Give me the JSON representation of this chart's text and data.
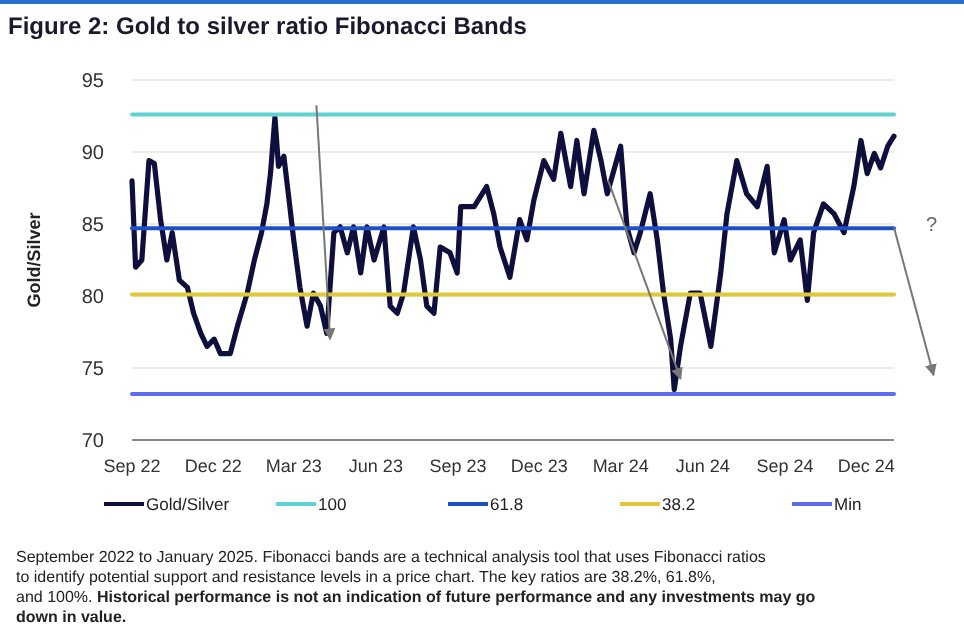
{
  "chart_data": {
    "type": "line",
    "title": "Figure 2: Gold to silver ratio Fibonacci Bands",
    "ylabel": "Gold/Silver",
    "xlim": [
      "2022-09-01",
      "2025-01-01"
    ],
    "xticks": [
      {
        "value": "2022-09-01",
        "label": "Sep 22"
      },
      {
        "value": "2022-12-01",
        "label": "Dec 22"
      },
      {
        "value": "2023-03-01",
        "label": "Mar 23"
      },
      {
        "value": "2023-06-01",
        "label": "Jun 23"
      },
      {
        "value": "2023-09-01",
        "label": "Sep 23"
      },
      {
        "value": "2023-12-01",
        "label": "Dec 23"
      },
      {
        "value": "2024-03-01",
        "label": "Mar 24"
      },
      {
        "value": "2024-06-01",
        "label": "Jun 24"
      },
      {
        "value": "2024-09-01",
        "label": "Sep 24"
      },
      {
        "value": "2024-12-01",
        "label": "Dec 24"
      }
    ],
    "ylim": [
      70,
      95
    ],
    "yticks": [
      70,
      75,
      80,
      85,
      90,
      95
    ],
    "grid": "y",
    "legend": "bottom",
    "series": [
      {
        "name": "Gold/Silver",
        "color": "#0f0f3d",
        "x": [
          "2022-09-01",
          "2022-09-05",
          "2022-09-12",
          "2022-09-20",
          "2022-09-26",
          "2022-10-03",
          "2022-10-10",
          "2022-10-16",
          "2022-10-24",
          "2022-11-02",
          "2022-11-09",
          "2022-11-17",
          "2022-11-24",
          "2022-12-02",
          "2022-12-09",
          "2022-12-20",
          "2022-12-28",
          "2023-01-08",
          "2023-01-16",
          "2023-01-24",
          "2023-01-30",
          "2023-02-03",
          "2023-02-08",
          "2023-02-12",
          "2023-02-18",
          "2023-02-23",
          "2023-03-01",
          "2023-03-08",
          "2023-03-16",
          "2023-03-23",
          "2023-03-31",
          "2023-04-07",
          "2023-04-15",
          "2023-04-22",
          "2023-04-30",
          "2023-05-07",
          "2023-05-15",
          "2023-05-22",
          "2023-05-30",
          "2023-06-10",
          "2023-06-17",
          "2023-06-25",
          "2023-07-02",
          "2023-07-13",
          "2023-07-21",
          "2023-07-28",
          "2023-08-05",
          "2023-08-12",
          "2023-08-23",
          "2023-08-31",
          "2023-09-04",
          "2023-09-19",
          "2023-10-03",
          "2023-10-11",
          "2023-10-18",
          "2023-10-29",
          "2023-11-09",
          "2023-11-17",
          "2023-11-25",
          "2023-12-06",
          "2023-12-17",
          "2023-12-25",
          "2024-01-05",
          "2024-01-12",
          "2024-01-20",
          "2024-01-31",
          "2024-02-08",
          "2024-02-15",
          "2024-03-01",
          "2024-03-08",
          "2024-03-16",
          "2024-03-23",
          "2024-04-03",
          "2024-04-11",
          "2024-04-18",
          "2024-04-26",
          "2024-04-30",
          "2024-05-07",
          "2024-05-18",
          "2024-05-29",
          "2024-06-10",
          "2024-06-21",
          "2024-06-28",
          "2024-07-09",
          "2024-07-20",
          "2024-08-01",
          "2024-08-12",
          "2024-08-20",
          "2024-08-31",
          "2024-09-07",
          "2024-09-18",
          "2024-09-26",
          "2024-10-03",
          "2024-10-14",
          "2024-10-26",
          "2024-11-06",
          "2024-11-17",
          "2024-11-25",
          "2024-12-02",
          "2024-12-10",
          "2024-12-17",
          "2024-12-25",
          "2025-01-01"
        ],
        "values": [
          88.0,
          82.0,
          82.5,
          89.4,
          89.2,
          85.3,
          82.5,
          84.4,
          81.1,
          80.6,
          78.8,
          77.4,
          76.5,
          77.0,
          76.0,
          76.0,
          77.9,
          80.2,
          82.5,
          84.4,
          86.4,
          88.5,
          92.4,
          89.0,
          89.7,
          87.1,
          83.9,
          80.6,
          77.9,
          80.2,
          79.3,
          77.4,
          84.4,
          84.8,
          83.0,
          84.8,
          81.6,
          84.8,
          82.5,
          84.8,
          79.3,
          78.8,
          80.2,
          84.8,
          82.5,
          79.3,
          78.8,
          83.4,
          83.0,
          81.6,
          86.2,
          86.2,
          87.6,
          85.7,
          83.4,
          81.3,
          85.3,
          83.9,
          86.7,
          89.4,
          88.1,
          91.3,
          87.6,
          90.8,
          87.1,
          91.5,
          89.4,
          87.1,
          90.4,
          84.8,
          83.0,
          84.4,
          87.1,
          83.9,
          80.2,
          77.0,
          73.5,
          76.5,
          80.2,
          80.2,
          76.5,
          81.6,
          85.7,
          89.4,
          87.1,
          86.2,
          89.0,
          83.0,
          85.3,
          82.5,
          83.9,
          79.7,
          84.4,
          86.4,
          85.7,
          84.4,
          87.6,
          90.8,
          88.5,
          89.9,
          88.9,
          90.4,
          91.1
        ]
      },
      {
        "name": "100",
        "color": "#5fd3d3",
        "x": [
          "2022-09-01",
          "2025-01-01"
        ],
        "values": [
          92.6,
          92.6
        ]
      },
      {
        "name": "61.8",
        "color": "#1f4fc8",
        "x": [
          "2022-09-01",
          "2025-01-01"
        ],
        "values": [
          84.7,
          84.7
        ]
      },
      {
        "name": "38.2",
        "color": "#e0c83a",
        "x": [
          "2022-09-01",
          "2025-01-01"
        ],
        "values": [
          80.1,
          80.1
        ]
      },
      {
        "name": "Min",
        "color": "#5b6cf0",
        "x": [
          "2022-09-01",
          "2025-01-01"
        ],
        "values": [
          73.2,
          73.2
        ]
      }
    ],
    "annotations": [
      "?",
      "September 2022 to January 2025. Fibonacci bands are a technical analysis tool that uses Fibonacci ratios to identify potential support and resistance levels in a price chart. The key ratios are 38.2%, 61.8%, and 100%.",
      "Historical performance is not an indication of future performance and any investments may go down in value."
    ]
  }
}
